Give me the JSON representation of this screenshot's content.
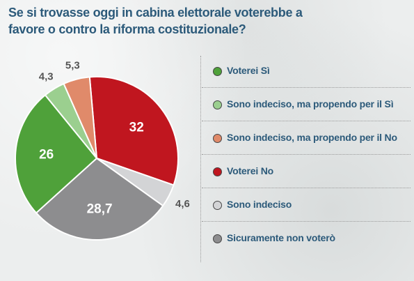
{
  "title": "Se si trovasse oggi in cabina elettorale voterebbe a favore o contro la riforma costituzionale?",
  "chart_data": {
    "type": "pie",
    "title": "Se si trovasse oggi in cabina elettorale voterebbe a favore o contro la riforma costituzionale?",
    "slices": [
      {
        "label": "Voterei No",
        "value": 32,
        "display": "32",
        "color": "#c0161f"
      },
      {
        "label": "Sono indeciso",
        "value": 4.6,
        "display": "4,6",
        "color": "#d3d4d6"
      },
      {
        "label": "Sicuramente non voterò",
        "value": 28.7,
        "display": "28,7",
        "color": "#8d8d8f"
      },
      {
        "label": "Voterei Sì",
        "value": 26,
        "display": "26",
        "color": "#4fa13a"
      },
      {
        "label": "Sono indeciso, ma propendo per il Sì",
        "value": 4.3,
        "display": "4,3",
        "color": "#9bcf8f"
      },
      {
        "label": "Sono indeciso, ma propendo per il No",
        "value": 5.3,
        "display": "5,3",
        "color": "#e08a6a"
      }
    ]
  },
  "legend": [
    {
      "label": "Voterei Sì",
      "color": "#4fa13a"
    },
    {
      "label": "Sono indeciso, ma propendo per il Sì",
      "color": "#9bcf8f"
    },
    {
      "label": "Sono indeciso, ma propendo per il No",
      "color": "#e08a6a"
    },
    {
      "label": "Voterei No",
      "color": "#c0161f"
    },
    {
      "label": "Sono indeciso",
      "color": "#d3d4d6"
    },
    {
      "label": "Sicuramente non voterò",
      "color": "#8d8d8f"
    }
  ]
}
